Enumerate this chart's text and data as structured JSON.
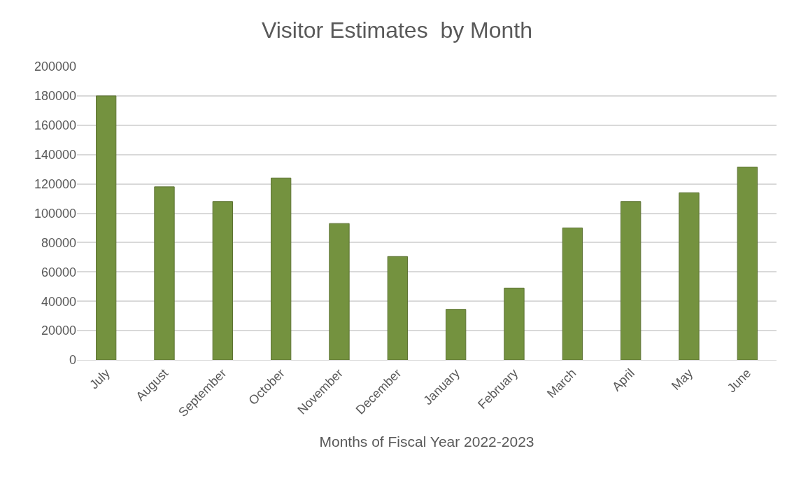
{
  "chart_data": {
    "type": "bar",
    "title": "Visitor Estimates  by Month",
    "xlabel": "Months of Fiscal Year 2022-2023",
    "categories": [
      "July",
      "August",
      "September",
      "October",
      "November",
      "December",
      "January",
      "February",
      "March",
      "April",
      "May",
      "June"
    ],
    "values": [
      180000,
      118000,
      108000,
      124000,
      93000,
      70500,
      34500,
      49000,
      90000,
      108000,
      114000,
      131500
    ],
    "color": "#74923f",
    "ylim": [
      0,
      200000
    ],
    "yticks": [
      0,
      20000,
      40000,
      60000,
      80000,
      100000,
      120000,
      140000,
      160000,
      180000,
      200000
    ],
    "grid": "y",
    "legend": false
  }
}
